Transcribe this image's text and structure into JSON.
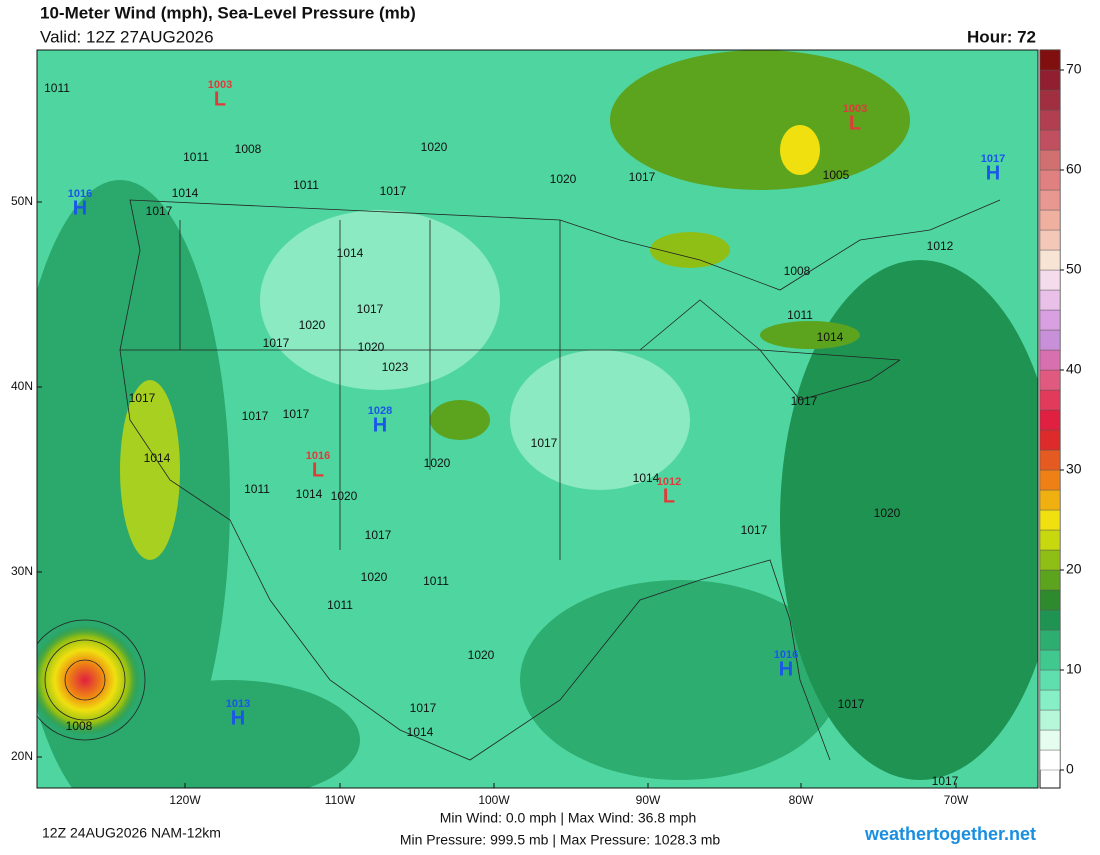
{
  "header": {
    "title": "10-Meter Wind (mph), Sea-Level Pressure (mb)",
    "valid": "Valid: 12Z 27AUG2026",
    "hour": "Hour: 72"
  },
  "map": {
    "lat_labels": [
      "50N",
      "40N",
      "30N",
      "20N"
    ],
    "lon_labels": [
      "120W",
      "110W",
      "100W",
      "90W",
      "80W",
      "70W"
    ],
    "isobar_labels": [
      "1011",
      "1011",
      "1008",
      "1011",
      "1014",
      "1017",
      "1020",
      "1017",
      "1020",
      "1017",
      "1014",
      "1017",
      "1020",
      "1017",
      "1020",
      "1023",
      "1017",
      "1017",
      "1017",
      "1014",
      "1011",
      "1014",
      "1020",
      "1020",
      "1017",
      "1017",
      "1020",
      "1011",
      "1011",
      "1020",
      "1017",
      "1014",
      "1008",
      "1005",
      "1008",
      "1011",
      "1014",
      "1017",
      "1014",
      "1017",
      "1020",
      "1017",
      "1012",
      "1017"
    ],
    "center_colors": {
      "H": "#1a56e8",
      "L": "#e03a3a"
    },
    "centers": [
      {
        "type": "L",
        "pressure": "1003"
      },
      {
        "type": "L",
        "pressure": "1003"
      },
      {
        "type": "H",
        "pressure": "1017"
      },
      {
        "type": "H",
        "pressure": "1016"
      },
      {
        "type": "H",
        "pressure": "1028"
      },
      {
        "type": "L",
        "pressure": "1016"
      },
      {
        "type": "L",
        "pressure": "1012"
      },
      {
        "type": "H",
        "pressure": "1016"
      },
      {
        "type": "H",
        "pressure": "1013"
      }
    ]
  },
  "colorbar": {
    "lim": [
      0,
      72
    ],
    "ticks": [
      0,
      10,
      20,
      30,
      40,
      50,
      60,
      70
    ],
    "colors": [
      "#ffffff",
      "#e4fdef",
      "#b6f7d8",
      "#86efc6",
      "#5fdfad",
      "#40c98f",
      "#2dae70",
      "#1f9452",
      "#2e8a2d",
      "#5ca31e",
      "#8fbe14",
      "#c7d90e",
      "#f0e010",
      "#f0b010",
      "#ee8015",
      "#e45a20",
      "#dd2a2a",
      "#e02040",
      "#e23a5a",
      "#e05a80",
      "#d870b0",
      "#c890d8",
      "#d8a0e0",
      "#e8c0e8",
      "#f4dcec",
      "#f8e4d4",
      "#f4c8b8",
      "#f0b0a0",
      "#e89890",
      "#e08080",
      "#d07070",
      "#c05060",
      "#b04050",
      "#a03040",
      "#902030",
      "#801010"
    ]
  },
  "footer": {
    "run": "12Z 24AUG2026 NAM-12km",
    "wind": "Min Wind:  0.0 mph | Max Wind:  36.8 mph",
    "pressure": "Min Pressure: 999.5 mb | Max Pressure: 1028.3 mb",
    "site": "weathertogether.net"
  }
}
